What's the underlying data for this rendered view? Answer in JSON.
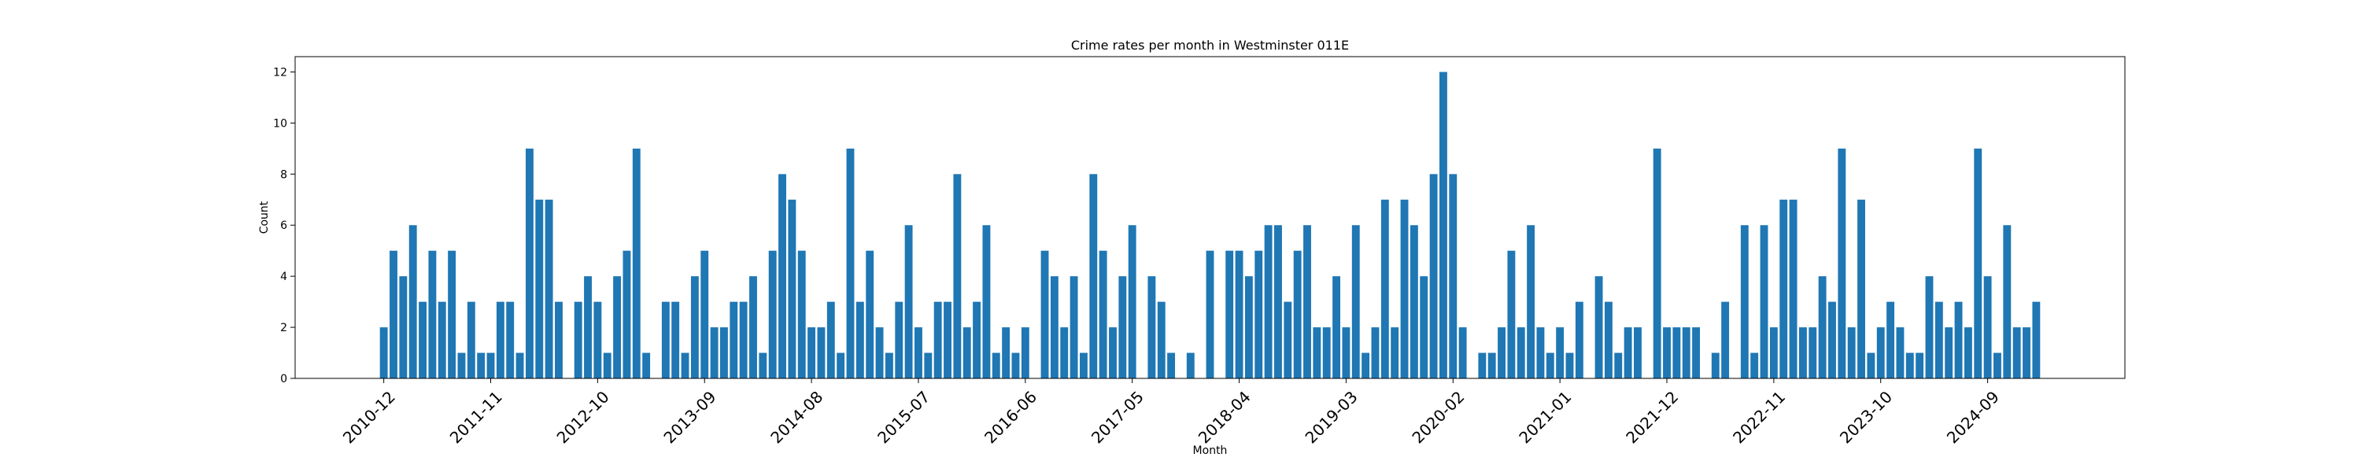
{
  "chart_data": {
    "type": "bar",
    "title": "Crime rates per month in Westminster 011E",
    "xlabel": "Month",
    "ylabel": "Count",
    "ylim": [
      0,
      12.6
    ],
    "yticks": [
      0,
      2,
      4,
      6,
      8,
      10,
      12
    ],
    "xtick_labels": [
      "2010-12",
      "2011-11",
      "2012-10",
      "2013-09",
      "2014-08",
      "2015-07",
      "2016-06",
      "2017-05",
      "2018-04",
      "2019-03",
      "2020-02",
      "2021-01",
      "2021-12",
      "2022-11",
      "2023-10",
      "2024-09"
    ],
    "grid": false,
    "bar_color": "#1f77b4",
    "start_month": "2010-12",
    "values": [
      2,
      5,
      4,
      6,
      3,
      5,
      3,
      5,
      1,
      3,
      1,
      1,
      3,
      3,
      1,
      9,
      7,
      7,
      3,
      0,
      3,
      4,
      3,
      1,
      4,
      5,
      9,
      1,
      0,
      3,
      3,
      1,
      4,
      5,
      2,
      2,
      3,
      3,
      4,
      1,
      5,
      8,
      7,
      5,
      2,
      2,
      3,
      1,
      9,
      3,
      5,
      2,
      1,
      3,
      6,
      2,
      1,
      3,
      3,
      8,
      2,
      3,
      6,
      1,
      2,
      1,
      2,
      0,
      5,
      4,
      2,
      4,
      1,
      8,
      5,
      2,
      4,
      6,
      0,
      4,
      3,
      1,
      0,
      1,
      0,
      5,
      0,
      5,
      5,
      4,
      5,
      6,
      6,
      3,
      5,
      6,
      2,
      2,
      4,
      2,
      6,
      1,
      2,
      7,
      2,
      7,
      6,
      4,
      8,
      12,
      8,
      2,
      0,
      1,
      1,
      2,
      5,
      2,
      6,
      2,
      1,
      2,
      1,
      3,
      0,
      4,
      3,
      1,
      2,
      2,
      0,
      9,
      2,
      2,
      2,
      2,
      0,
      1,
      3,
      0,
      6,
      1,
      6,
      2,
      7,
      7,
      2,
      2,
      4,
      3,
      9,
      2,
      7,
      1,
      2,
      3,
      2,
      1,
      1,
      4,
      3,
      2,
      3,
      2,
      9,
      4,
      1,
      6,
      2,
      2,
      3
    ]
  }
}
